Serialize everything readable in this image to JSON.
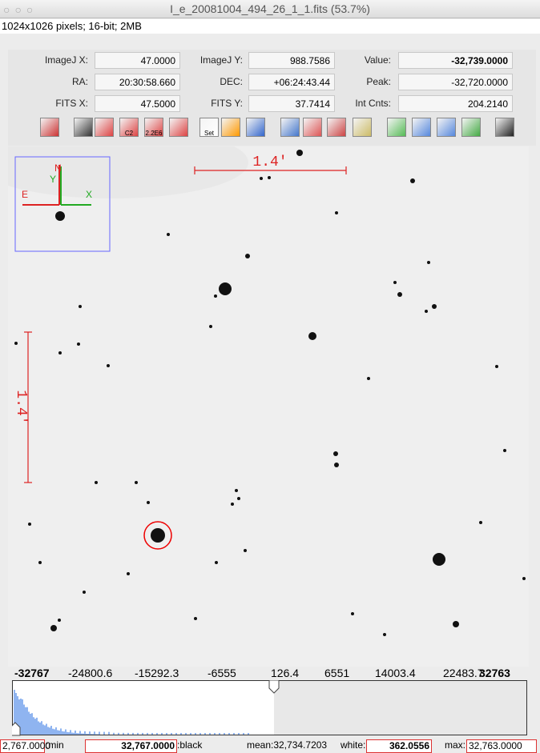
{
  "window_title": "I_e_20081004_494_26_1_1.fits (53.7%)",
  "info": "1024x1026 pixels; 16-bit; 2MB",
  "fields": [
    [
      {
        "label": "ImageJ X:",
        "value": "47.0000"
      },
      {
        "label": "ImageJ Y:",
        "value": "988.7586"
      },
      {
        "label": "Value:",
        "value": "-32,739.0000"
      }
    ],
    [
      {
        "label": "RA:",
        "value": "20:30:58.660"
      },
      {
        "label": "DEC:",
        "value": "+06:24:43.44"
      },
      {
        "label": "Peak:",
        "value": "-32,720.0000"
      }
    ],
    [
      {
        "label": "FITS X:",
        "value": "47.5000"
      },
      {
        "label": "FITS Y:",
        "value": "37.7414"
      },
      {
        "label": "Int Cnts:",
        "value": "204.2140"
      }
    ]
  ],
  "toolbar_labels": [
    "C2",
    "2.2E6",
    "Set"
  ],
  "overlay": {
    "scale_h": "1.4'",
    "scale_v": "1.4'",
    "compass": {
      "n": "N",
      "y": "Y",
      "e": "E",
      "x": "X"
    }
  },
  "histogram_labels": [
    "-32767",
    "-24800.6",
    "-15292.3",
    "-6555",
    "126.4",
    "6551",
    "14003.4",
    "22483.7",
    "32763"
  ],
  "status": {
    "min_value": "2,767.0000",
    "min_label": ":min",
    "black_value": "32,767.0000",
    "black_label": ":black",
    "mean": "mean:32,734.7203",
    "white_label": "white:",
    "white_value": "362.0556",
    "max_label": "max:",
    "max_value": "32,763.0000"
  }
}
